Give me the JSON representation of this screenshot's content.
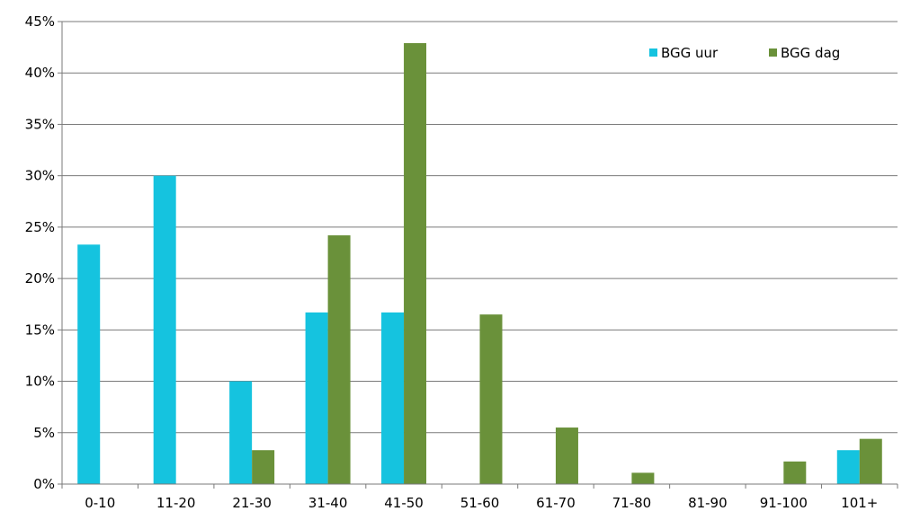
{
  "chart_data": {
    "type": "bar",
    "categories": [
      "0-10",
      "11-20",
      "21-30",
      "31-40",
      "41-50",
      "51-60",
      "61-70",
      "71-80",
      "81-90",
      "91-100",
      "101+"
    ],
    "series": [
      {
        "name": "BGG uur",
        "color": "#15c3df",
        "values": [
          23.3,
          30.0,
          10.0,
          16.7,
          16.7,
          0,
          0,
          0,
          0,
          0,
          3.3
        ]
      },
      {
        "name": "BGG dag",
        "color": "#6a913a",
        "values": [
          0,
          0,
          3.3,
          24.2,
          42.9,
          16.5,
          5.5,
          1.1,
          0,
          2.2,
          4.4
        ]
      }
    ],
    "y_ticks": [
      "0%",
      "5%",
      "10%",
      "15%",
      "20%",
      "25%",
      "30%",
      "35%",
      "40%",
      "45%"
    ],
    "ylim": [
      0,
      45
    ],
    "grid": true,
    "legend": {
      "position": "top-right",
      "entries": [
        "BGG uur",
        "BGG dag"
      ]
    },
    "title": "",
    "xlabel": "",
    "ylabel": ""
  }
}
